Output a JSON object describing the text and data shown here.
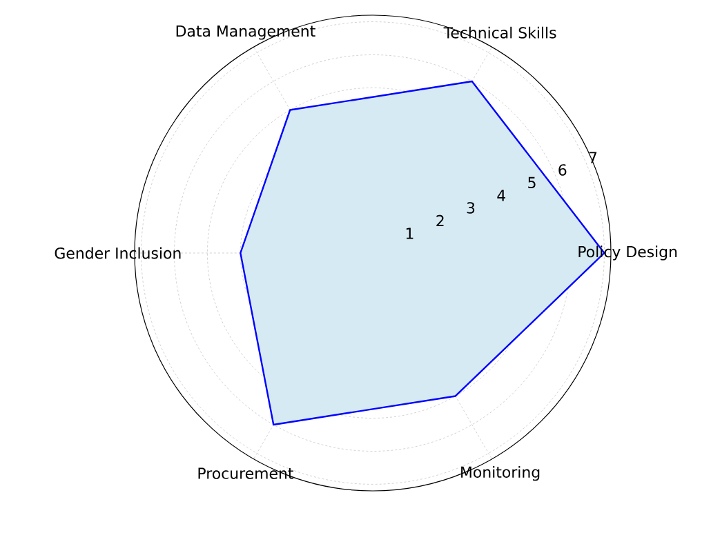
{
  "chart_data": {
    "type": "radar",
    "categories": [
      "Technical Skills",
      "Policy Design",
      "Monitoring",
      "Procurement",
      "Gender Inclusion",
      "Data Management"
    ],
    "series": [
      {
        "color": "#0000ff",
        "values": [
          6,
          7,
          5,
          6,
          4,
          5
        ]
      }
    ],
    "ylim": [
      0,
      7.2
    ],
    "yticks": [
      1,
      2,
      3,
      4,
      5,
      6,
      7
    ],
    "grid": true
  }
}
